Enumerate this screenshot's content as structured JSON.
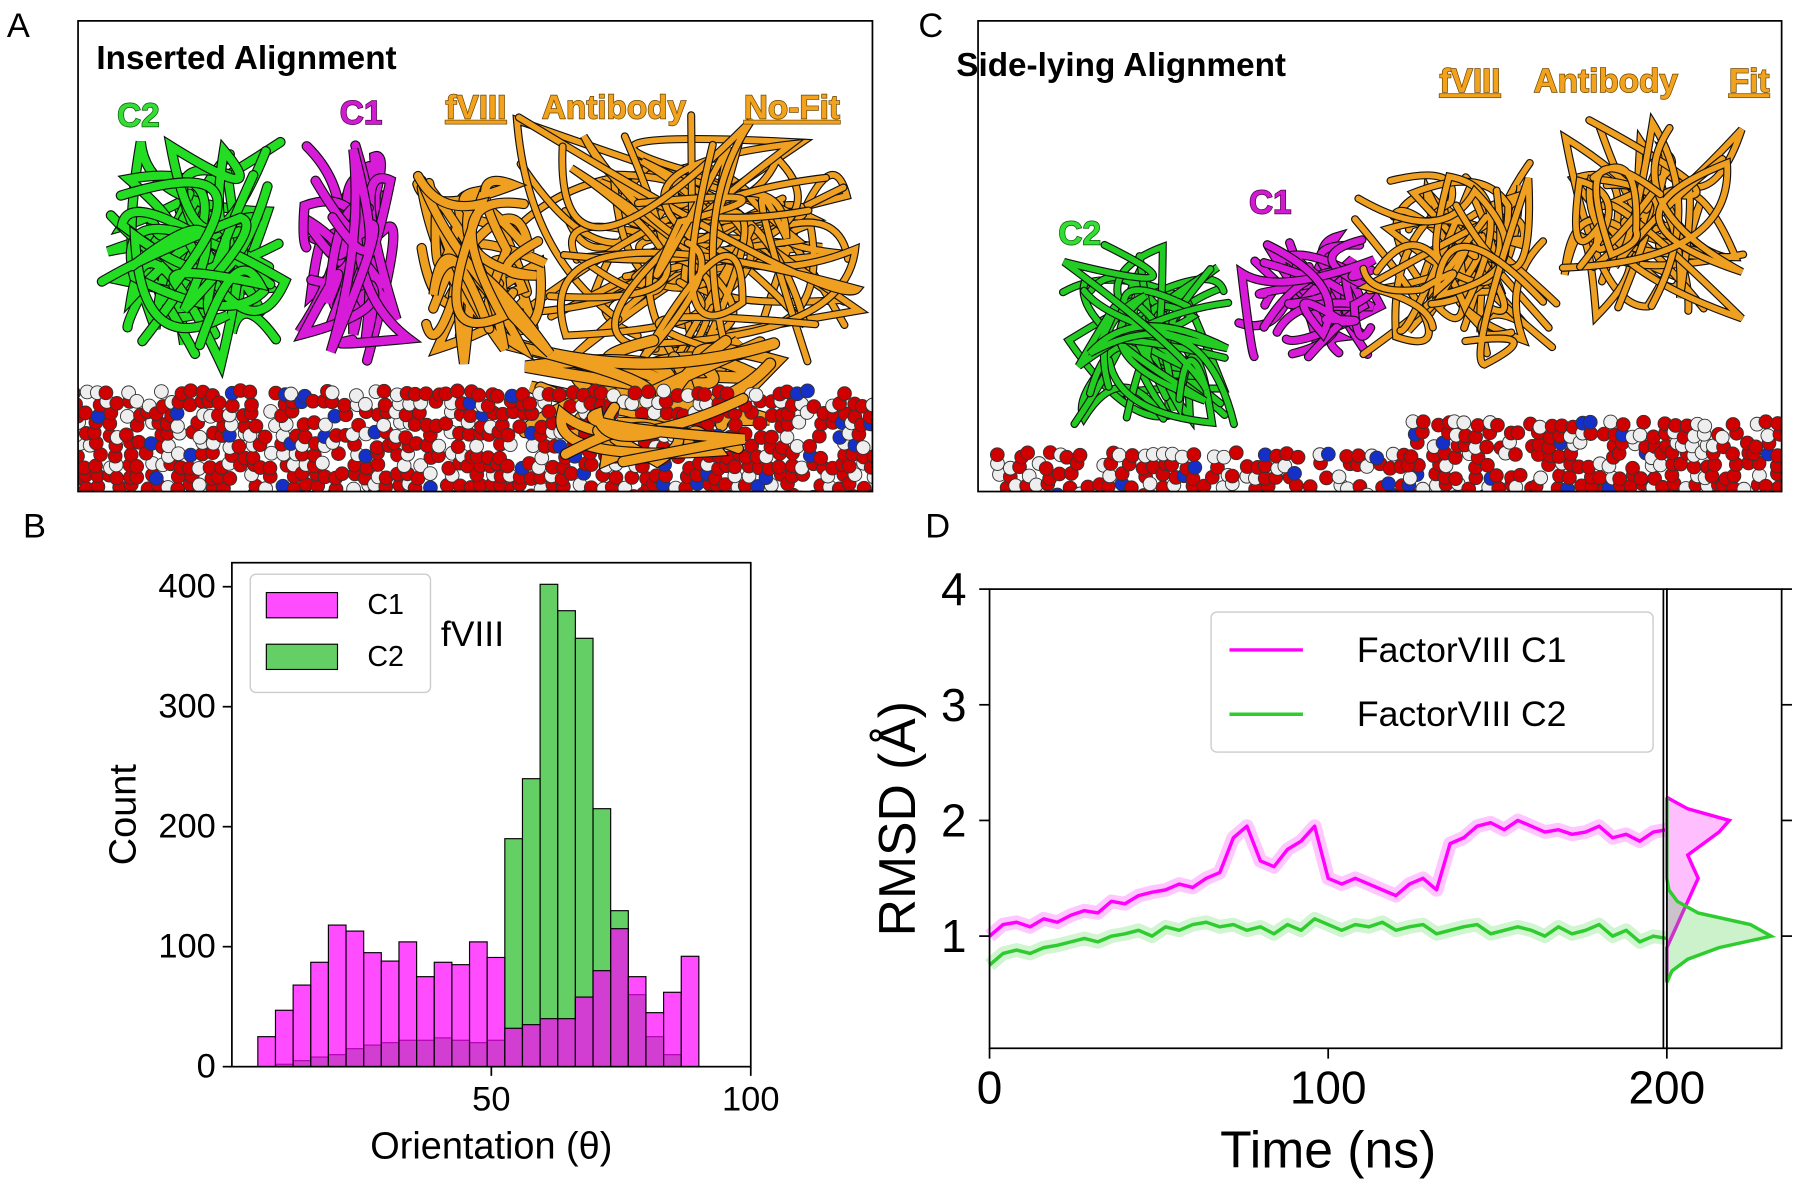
{
  "panel_labels": [
    "A",
    "B",
    "C",
    "D"
  ],
  "panel_a": {
    "title": "Inserted Alignment",
    "domains": [
      "C2",
      "C1"
    ],
    "antibody": [
      "fVIII",
      "Antibody",
      "No-Fit"
    ]
  },
  "panel_c": {
    "title": "Side-lying Alignment",
    "domains": [
      "C2",
      "C1"
    ],
    "antibody": [
      "fVIII",
      "Antibody",
      "Fit"
    ]
  },
  "chart_data": [
    {
      "type": "histogram",
      "xlabel": "Orientation (θ)",
      "ylabel": "Count",
      "annotation": "fVIII",
      "bins": [
        5,
        8.4,
        11.8,
        15.2,
        18.6,
        22,
        25.4,
        28.8,
        32.2,
        35.6,
        39,
        42.4,
        45.8,
        49.2,
        52.6,
        56,
        59.4,
        62.8,
        66.2,
        69.6,
        73,
        76.4,
        79.8,
        83.2,
        86.6,
        90
      ],
      "series": [
        {
          "name": "C1",
          "color": "#ff00ff",
          "values": [
            25,
            47,
            68,
            87,
            118,
            113,
            95,
            88,
            104,
            75,
            87,
            85,
            104,
            91,
            32,
            35,
            40,
            40,
            58,
            80,
            115,
            75,
            45,
            62,
            92
          ]
        },
        {
          "name": "C2",
          "color": "#22bb22",
          "values": [
            0,
            2,
            5,
            8,
            10,
            15,
            18,
            20,
            22,
            22,
            24,
            22,
            20,
            22,
            190,
            240,
            402,
            380,
            357,
            215,
            130,
            60,
            25,
            10,
            0
          ]
        }
      ],
      "xlim": [
        0,
        100
      ],
      "ylim": [
        0,
        420
      ],
      "xticks": [
        50,
        100
      ],
      "yticks": [
        0,
        100,
        200,
        300,
        400
      ],
      "legend": "upper left"
    },
    {
      "type": "line",
      "xlabel": "Time (ns)",
      "ylabel": "RMSD (Å)",
      "x": [
        0,
        4,
        8,
        12,
        16,
        20,
        24,
        28,
        32,
        36,
        40,
        44,
        48,
        52,
        56,
        60,
        64,
        68,
        72,
        76,
        80,
        84,
        88,
        92,
        96,
        100,
        104,
        108,
        112,
        116,
        120,
        124,
        128,
        132,
        136,
        140,
        144,
        148,
        152,
        156,
        160,
        164,
        168,
        172,
        176,
        180,
        184,
        188,
        192,
        196,
        200
      ],
      "series": [
        {
          "name": "FactorVIII C1",
          "color": "#ff00ff",
          "values": [
            1.0,
            1.1,
            1.12,
            1.08,
            1.15,
            1.12,
            1.18,
            1.22,
            1.2,
            1.3,
            1.28,
            1.35,
            1.38,
            1.4,
            1.45,
            1.42,
            1.5,
            1.55,
            1.85,
            1.95,
            1.65,
            1.6,
            1.75,
            1.82,
            1.95,
            1.5,
            1.45,
            1.5,
            1.45,
            1.4,
            1.35,
            1.45,
            1.5,
            1.4,
            1.8,
            1.85,
            1.95,
            1.98,
            1.92,
            2.0,
            1.95,
            1.9,
            1.92,
            1.88,
            1.9,
            1.95,
            1.85,
            1.88,
            1.82,
            1.9,
            1.92
          ]
        },
        {
          "name": "FactorVIII C2",
          "color": "#2ecc2e",
          "values": [
            0.75,
            0.85,
            0.88,
            0.85,
            0.9,
            0.92,
            0.95,
            0.98,
            0.95,
            1.0,
            1.02,
            1.05,
            1.0,
            1.08,
            1.05,
            1.1,
            1.12,
            1.08,
            1.1,
            1.05,
            1.08,
            1.02,
            1.1,
            1.05,
            1.15,
            1.1,
            1.05,
            1.1,
            1.08,
            1.12,
            1.05,
            1.08,
            1.1,
            1.02,
            1.05,
            1.08,
            1.1,
            1.02,
            1.05,
            1.08,
            1.05,
            1.0,
            1.08,
            1.02,
            1.05,
            1.1,
            1.0,
            1.05,
            0.95,
            1.0,
            0.98
          ]
        }
      ],
      "xlim": [
        0,
        200
      ],
      "ylim": [
        0.03,
        4
      ],
      "xticks": [
        0,
        100,
        200
      ],
      "yticks": [
        1,
        2,
        3,
        4
      ],
      "legend": "upper right"
    },
    {
      "type": "density",
      "y": [
        0.6,
        0.7,
        0.8,
        0.9,
        1.0,
        1.1,
        1.2,
        1.3,
        1.4,
        1.5,
        1.6,
        1.7,
        1.8,
        1.9,
        2.0,
        2.1,
        2.2
      ],
      "series": [
        {
          "name": "FactorVIII C1",
          "color": "#ff00ff",
          "values": [
            0,
            0,
            0,
            0,
            0.05,
            0.1,
            0.15,
            0.2,
            0.25,
            0.3,
            0.25,
            0.2,
            0.35,
            0.5,
            0.6,
            0.2,
            0
          ]
        },
        {
          "name": "FactorVIII C2",
          "color": "#2ecc2e",
          "values": [
            0,
            0.05,
            0.2,
            0.5,
            1.0,
            0.8,
            0.3,
            0.1,
            0.02,
            0,
            0,
            0,
            0,
            0,
            0,
            0,
            0
          ]
        }
      ],
      "xlim": [
        0,
        1.1
      ],
      "ylim": [
        0.03,
        4
      ]
    }
  ]
}
